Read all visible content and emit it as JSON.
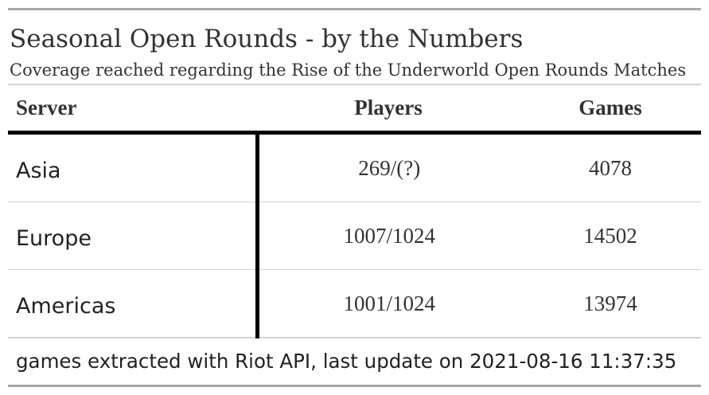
{
  "header": {
    "title": "Seasonal Open Rounds - by the Numbers",
    "subtitle": "Coverage reached regarding the Rise of the Underworld Open Rounds Matches"
  },
  "table": {
    "columns": [
      "Server",
      "Players",
      "Games"
    ],
    "rows": [
      {
        "server": "Asia",
        "players": "269/(?)",
        "games": "4078"
      },
      {
        "server": "Europe",
        "players": "1007/1024",
        "games": "14502"
      },
      {
        "server": "Americas",
        "players": "1001/1024",
        "games": "13974"
      }
    ]
  },
  "footer": {
    "note": "games extracted with Riot API, last update on 2021-08-16 11:37:35"
  }
}
